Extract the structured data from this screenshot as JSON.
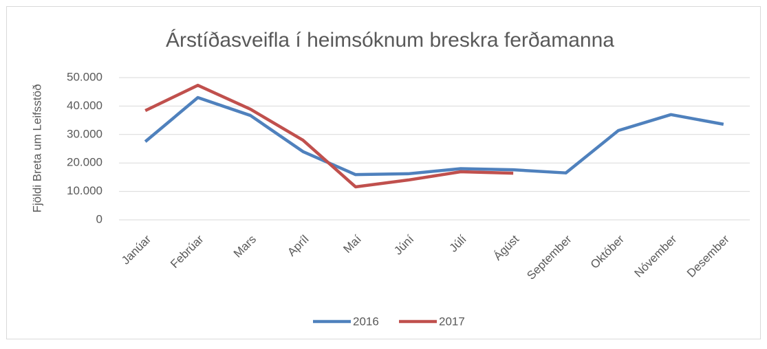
{
  "chart_data": {
    "type": "line",
    "title": "Árstíðasveifla í heimsóknum breskra ferðamanna",
    "y_label": "Fjöldi Breta um Leifsstöð",
    "categories": [
      "Janúar",
      "Febrúar",
      "Mars",
      "Apríl",
      "Maí",
      "Júní",
      "Júlí",
      "Ágúst",
      "September",
      "Október",
      "Nóvember",
      "Desember"
    ],
    "series": [
      {
        "name": "2016",
        "color": "#4f81bd",
        "values": [
          27500,
          43000,
          36700,
          24000,
          15900,
          16200,
          18000,
          17600,
          16500,
          31400,
          37000,
          33600
        ]
      },
      {
        "name": "2017",
        "color": "#c0504d",
        "values": [
          38400,
          47300,
          38900,
          28000,
          11600,
          14000,
          16900,
          16400,
          null,
          null,
          null,
          null
        ]
      }
    ],
    "ylim": [
      0,
      50000
    ],
    "yticks": [
      0,
      {
        "value": 10000,
        "label": "10.000"
      },
      {
        "value": 20000,
        "label": "20.000"
      },
      {
        "value": 30000,
        "label": "30.000"
      },
      {
        "value": 40000,
        "label": "40.000"
      },
      {
        "value": 50000,
        "label": "50.000"
      }
    ],
    "grid": true,
    "legend": "bottom"
  }
}
